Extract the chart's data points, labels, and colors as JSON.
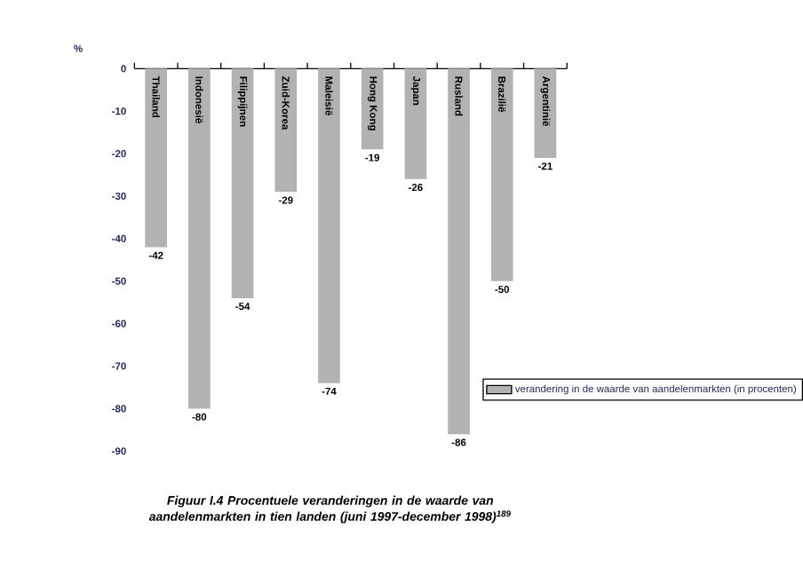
{
  "chart_data": {
    "type": "bar",
    "title": "Figuur I.4 Procentuele veranderingen in de waarde van aandelenmarkten in tien landen (juni 1997-december 1998)$^{189}$",
    "ylabel": "%",
    "categories": [
      "Thailand",
      "Indonesië",
      "Filippijnen",
      "Zuid-Korea",
      "Maleisië",
      "Hong Kong",
      "Japan",
      "Rusland",
      "Brazilië",
      "Argentinië"
    ],
    "series": [
      {
        "name": "verandering in de waarde van aandelenmarkten (in procenten)",
        "color": "#b2b2b2",
        "values": [
          -42,
          -80,
          -54,
          -29,
          -74,
          -19,
          -26,
          -86,
          -50,
          -21
        ]
      }
    ],
    "ylim": [
      -90,
      0
    ],
    "yticks": [
      0,
      -10,
      -20,
      -30,
      -40,
      -50,
      -60,
      -70,
      -80,
      -90
    ],
    "data_labels": true,
    "legend": "bottom right",
    "grid": false
  }
}
